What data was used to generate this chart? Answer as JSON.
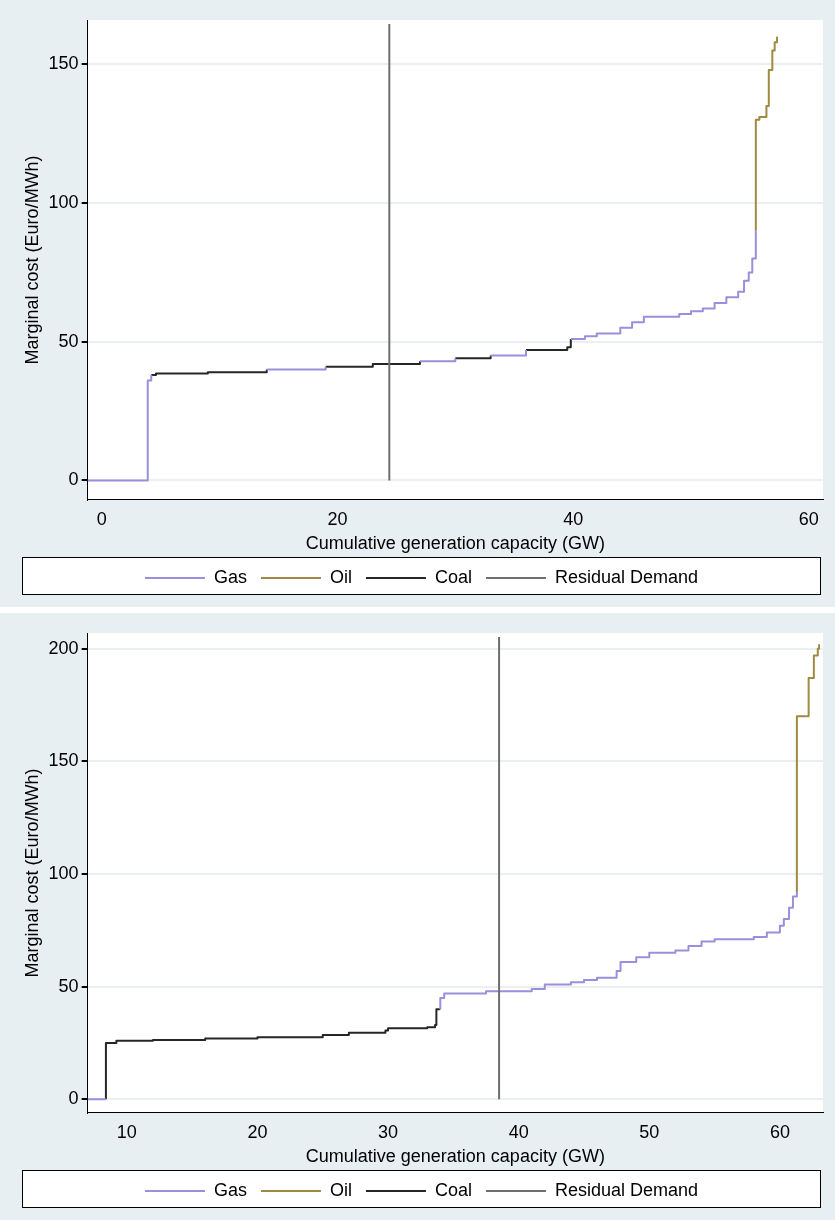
{
  "chart_data": [
    {
      "type": "step",
      "xlabel": "Cumulative generation capacity (GW)",
      "ylabel": "Marginal cost (Euro/MWh)",
      "xlim": [
        -1.2,
        61.2
      ],
      "xticks": [
        0,
        20,
        40,
        60
      ],
      "ylim": [
        -7,
        166
      ],
      "yticks": [
        0,
        50,
        100,
        150
      ],
      "grid": "y",
      "legend": "bottom",
      "marker": "none",
      "series": [
        {
          "name": "Gas",
          "color": "#9890dc",
          "x": [
            -1.2,
            3.9,
            4.2,
            null,
            14,
            19,
            null,
            27,
            30,
            null,
            33,
            36,
            null,
            39.8,
            41,
            42,
            44,
            45,
            46,
            49,
            50,
            51,
            52,
            53,
            54,
            54.5,
            54.9,
            55.2,
            55.5
          ],
          "values": [
            0,
            36,
            38,
            null,
            40,
            41,
            null,
            43,
            44,
            null,
            45,
            47,
            null,
            51,
            52,
            53,
            55,
            57,
            59,
            60,
            61,
            62,
            64,
            66,
            68,
            72,
            75,
            80,
            90
          ]
        },
        {
          "name": "Oil",
          "color": "#a08a42",
          "x": [
            55.5,
            55.5,
            55.8,
            56.4,
            56.6,
            56.9,
            57.1,
            57.3
          ],
          "values": [
            90,
            130,
            131,
            135,
            148,
            155,
            158,
            160
          ]
        },
        {
          "name": "Coal",
          "color": "#262626",
          "x": [
            4.2,
            4.6,
            9,
            14,
            null,
            19,
            23,
            27,
            null,
            30,
            33,
            null,
            36,
            39.5,
            39.8
          ],
          "values": [
            38,
            38.5,
            39,
            40,
            null,
            41,
            42,
            43,
            null,
            44,
            45,
            null,
            47,
            48,
            51
          ]
        }
      ],
      "ref_lines": [
        {
          "axis": "x",
          "value": 24.4,
          "label": "Residual Demand",
          "color": "#6e6e6e"
        }
      ]
    },
    {
      "type": "step",
      "xlabel": "Cumulative generation capacity (GW)",
      "ylabel": "Marginal cost (Euro/MWh)",
      "xlim": [
        7,
        63.3
      ],
      "xticks": [
        10,
        20,
        30,
        40,
        50,
        60
      ],
      "ylim": [
        -6,
        207
      ],
      "yticks": [
        0,
        50,
        100,
        150,
        200
      ],
      "grid": "y",
      "legend": "bottom",
      "marker": "none",
      "series": [
        {
          "name": "Gas",
          "color": "#9890dc",
          "x": [
            7,
            8.4,
            null,
            34,
            34,
            34.3,
            37.5,
            41,
            42,
            44,
            45,
            46,
            47.5,
            47.8,
            49,
            50,
            52,
            53,
            54,
            55,
            58,
            59,
            60,
            60.3,
            60.7,
            61,
            61.3
          ],
          "values": [
            0,
            0,
            null,
            40,
            45,
            47,
            48,
            49,
            51,
            52,
            53,
            54,
            57,
            61,
            63,
            65,
            66,
            68,
            70,
            71,
            72,
            74,
            77,
            80,
            85,
            90,
            92
          ]
        },
        {
          "name": "Oil",
          "color": "#a08a42",
          "x": [
            61.3,
            61.3,
            62.2,
            62.6,
            62.9,
            63
          ],
          "values": [
            92,
            170,
            187,
            197,
            200,
            202
          ]
        },
        {
          "name": "Coal",
          "color": "#262626",
          "x": [
            8.4,
            8.4,
            9.2,
            12,
            16,
            20,
            25,
            27,
            29.8,
            30,
            33,
            33.6,
            33.7,
            34
          ],
          "values": [
            0,
            25,
            26,
            26.3,
            27,
            27.5,
            28.5,
            29.5,
            30.5,
            31.5,
            32,
            33,
            40,
            40
          ]
        }
      ],
      "ref_lines": [
        {
          "axis": "x",
          "value": 38.5,
          "label": "Residual Demand",
          "color": "#6e6e6e"
        }
      ]
    }
  ]
}
